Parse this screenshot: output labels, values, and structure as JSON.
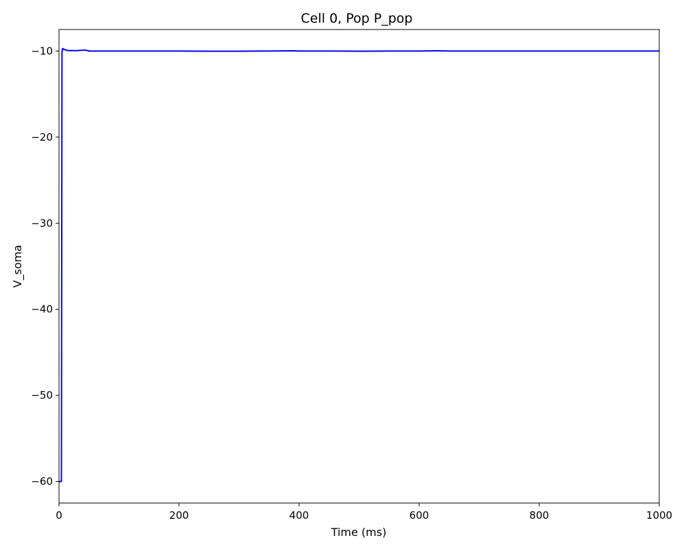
{
  "chart_data": {
    "type": "line",
    "title": "Cell 0, Pop P_pop",
    "xlabel": "Time (ms)",
    "ylabel": "V_soma",
    "xlim": [
      0,
      1000
    ],
    "ylim": [
      -62.5,
      -7.5
    ],
    "xticks": [
      {
        "value": 0,
        "label": "0"
      },
      {
        "value": 200,
        "label": "200"
      },
      {
        "value": 400,
        "label": "400"
      },
      {
        "value": 600,
        "label": "600"
      },
      {
        "value": 800,
        "label": "800"
      },
      {
        "value": 1000,
        "label": "1000"
      }
    ],
    "yticks": [
      {
        "value": -60,
        "label": "−60"
      },
      {
        "value": -50,
        "label": "−50"
      },
      {
        "value": -40,
        "label": "−40"
      },
      {
        "value": -30,
        "label": "−30"
      },
      {
        "value": -20,
        "label": "−20"
      },
      {
        "value": -10,
        "label": "−10"
      }
    ],
    "grid": false,
    "series": [
      {
        "color": "#0000ff",
        "x": [
          0,
          2,
          3,
          4,
          5,
          6,
          8,
          10,
          15,
          20,
          30,
          40,
          45,
          50,
          60,
          80,
          100,
          150,
          200,
          250,
          300,
          350,
          390,
          400,
          450,
          500,
          550,
          600,
          630,
          650,
          700,
          750,
          800,
          850,
          900,
          950,
          1000
        ],
        "y": [
          -60,
          -60,
          -60,
          -60,
          -10.2,
          -9.7,
          -9.8,
          -9.85,
          -9.95,
          -9.95,
          -9.95,
          -9.9,
          -9.9,
          -10.0,
          -10.0,
          -10.0,
          -10.0,
          -10.0,
          -10.0,
          -10.02,
          -10.02,
          -10.0,
          -9.97,
          -10.0,
          -10.0,
          -10.02,
          -10.0,
          -10.0,
          -9.97,
          -10.0,
          -10.0,
          -10.0,
          -10.0,
          -10.0,
          -10.0,
          -10.0,
          -10.0
        ]
      }
    ]
  }
}
